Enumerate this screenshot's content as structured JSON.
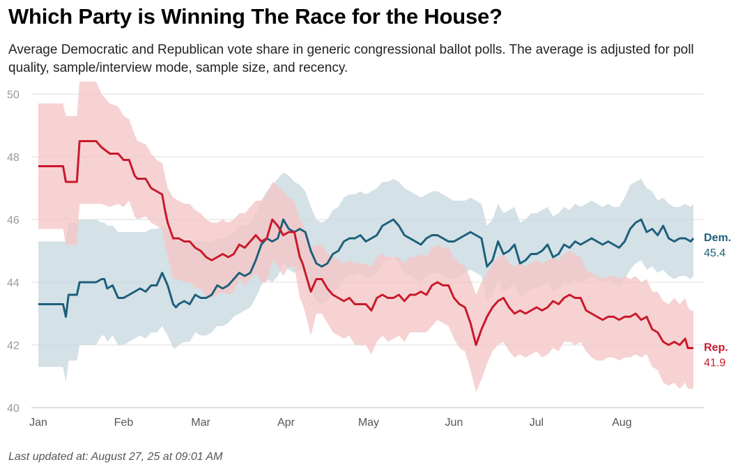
{
  "header": {
    "title": "Which Party is Winning The Race for the House?",
    "subtitle": "Average Democratic and Republican vote share in generic congressional ballot polls. The average is adjusted for poll quality, sample/interview mode, sample size, and recency."
  },
  "footer": {
    "updated": "Last updated at: August 27, 25 at 09:01 AM"
  },
  "colors": {
    "dem": "#1d5f7a",
    "dem_band": "#c9dae1",
    "rep": "#c8192a",
    "rep_band": "#f4c7c7",
    "grid": "#dddddd"
  },
  "chart_data": {
    "type": "line",
    "title": "Which Party is Winning The Race for the House?",
    "xlabel": "",
    "ylabel": "",
    "ylim": [
      40,
      50
    ],
    "y_ticks": [
      40,
      42,
      44,
      46,
      48,
      50
    ],
    "x_tick_labels": [
      "Jan",
      "Feb",
      "Mar",
      "Apr",
      "May",
      "Jun",
      "Jul",
      "Aug"
    ],
    "x_tick_days": [
      1,
      32,
      60,
      91,
      121,
      152,
      182,
      213
    ],
    "x_unit": "day of year 2025",
    "grid": true,
    "series": [
      {
        "name": "Dem.",
        "end_value": "45.4",
        "x": [
          1,
          10,
          11,
          12,
          15,
          16,
          22,
          24,
          25,
          26,
          28,
          30,
          32,
          34,
          36,
          38,
          40,
          42,
          44,
          46,
          48,
          50,
          51,
          52,
          54,
          56,
          58,
          60,
          62,
          64,
          66,
          68,
          70,
          72,
          74,
          76,
          78,
          80,
          82,
          84,
          86,
          88,
          90,
          92,
          94,
          96,
          98,
          100,
          102,
          104,
          106,
          108,
          110,
          112,
          114,
          116,
          118,
          120,
          122,
          124,
          126,
          128,
          130,
          132,
          134,
          136,
          138,
          140,
          142,
          144,
          146,
          148,
          150,
          152,
          154,
          156,
          158,
          160,
          162,
          164,
          166,
          168,
          170,
          172,
          174,
          176,
          178,
          180,
          182,
          184,
          186,
          188,
          190,
          192,
          194,
          196,
          198,
          200,
          202,
          204,
          206,
          208,
          210,
          212,
          214,
          216,
          218,
          220,
          222,
          224,
          226,
          228,
          230,
          232,
          234,
          236,
          238,
          239
        ],
        "y": [
          43.3,
          43.3,
          42.9,
          43.6,
          43.6,
          44.0,
          44.0,
          44.1,
          44.1,
          43.8,
          43.9,
          43.5,
          43.5,
          43.6,
          43.7,
          43.8,
          43.7,
          43.9,
          43.9,
          44.3,
          43.9,
          43.3,
          43.2,
          43.3,
          43.4,
          43.3,
          43.6,
          43.5,
          43.5,
          43.6,
          43.9,
          43.8,
          43.9,
          44.1,
          44.3,
          44.2,
          44.3,
          44.7,
          45.2,
          45.4,
          45.3,
          45.4,
          46.0,
          45.7,
          45.6,
          45.7,
          45.6,
          45.0,
          44.6,
          44.5,
          44.6,
          44.9,
          45.0,
          45.3,
          45.4,
          45.4,
          45.5,
          45.3,
          45.4,
          45.5,
          45.8,
          45.9,
          46.0,
          45.8,
          45.5,
          45.4,
          45.3,
          45.2,
          45.4,
          45.5,
          45.5,
          45.4,
          45.3,
          45.3,
          45.4,
          45.5,
          45.6,
          45.5,
          45.4,
          44.5,
          44.7,
          45.3,
          44.9,
          45.0,
          45.2,
          44.6,
          44.7,
          44.9,
          44.9,
          45.0,
          45.2,
          44.8,
          44.9,
          45.2,
          45.1,
          45.3,
          45.2,
          45.3,
          45.4,
          45.3,
          45.2,
          45.3,
          45.2,
          45.1,
          45.3,
          45.7,
          45.9,
          46.0,
          45.6,
          45.7,
          45.5,
          45.8,
          45.4,
          45.3,
          45.4,
          45.4,
          45.3,
          45.4
        ],
        "upper": [
          45.3,
          45.3,
          45.3,
          45.9,
          45.9,
          46.0,
          46.0,
          45.9,
          45.9,
          45.8,
          45.8,
          45.6,
          45.6,
          45.6,
          45.6,
          45.6,
          45.6,
          45.7,
          45.7,
          45.8,
          45.7,
          45.4,
          45.3,
          45.3,
          45.3,
          45.2,
          45.3,
          45.3,
          45.3,
          45.3,
          45.4,
          45.4,
          45.5,
          45.6,
          45.8,
          45.8,
          45.9,
          46.2,
          46.6,
          46.9,
          47.1,
          47.3,
          47.5,
          47.4,
          47.2,
          47.1,
          46.9,
          46.4,
          46.0,
          45.9,
          46.0,
          46.3,
          46.4,
          46.7,
          46.8,
          46.8,
          46.9,
          46.8,
          46.9,
          47.0,
          47.2,
          47.2,
          47.3,
          47.2,
          47.0,
          46.9,
          46.8,
          46.7,
          46.8,
          46.9,
          46.9,
          46.8,
          46.7,
          46.6,
          46.6,
          46.6,
          46.7,
          46.6,
          46.5,
          45.8,
          46.0,
          46.5,
          46.2,
          46.3,
          46.4,
          45.9,
          46.0,
          46.2,
          46.2,
          46.3,
          46.4,
          46.1,
          46.2,
          46.4,
          46.3,
          46.5,
          46.4,
          46.5,
          46.6,
          46.5,
          46.4,
          46.5,
          46.4,
          46.4,
          46.7,
          47.1,
          47.2,
          47.3,
          47.0,
          46.9,
          46.6,
          46.7,
          46.5,
          46.4,
          46.4,
          46.5,
          46.4,
          46.5
        ],
        "lower": [
          41.3,
          41.3,
          40.8,
          41.5,
          41.5,
          42.0,
          42.0,
          42.3,
          42.3,
          42.1,
          42.3,
          42.0,
          42.0,
          42.1,
          42.2,
          42.3,
          42.2,
          42.4,
          42.4,
          42.6,
          42.3,
          41.9,
          41.9,
          42.0,
          42.1,
          42.1,
          42.4,
          42.3,
          42.3,
          42.4,
          42.6,
          42.6,
          42.7,
          42.9,
          43.0,
          43.1,
          43.2,
          43.5,
          43.9,
          44.1,
          44.0,
          44.2,
          44.6,
          44.4,
          44.3,
          44.4,
          44.3,
          43.8,
          43.4,
          43.3,
          43.4,
          43.7,
          43.8,
          44.1,
          44.2,
          44.2,
          44.3,
          44.1,
          44.2,
          44.3,
          44.6,
          44.7,
          44.8,
          44.6,
          44.3,
          44.2,
          44.1,
          44.0,
          44.2,
          44.3,
          44.3,
          44.2,
          44.1,
          44.1,
          44.2,
          44.3,
          44.4,
          44.3,
          44.2,
          43.4,
          43.6,
          44.1,
          43.7,
          43.8,
          44.0,
          43.5,
          43.6,
          43.8,
          43.8,
          43.9,
          44.0,
          43.7,
          43.8,
          44.0,
          43.9,
          44.1,
          44.0,
          44.1,
          44.2,
          44.1,
          44.0,
          44.1,
          44.0,
          43.9,
          44.1,
          44.4,
          44.6,
          44.7,
          44.4,
          44.5,
          44.3,
          44.4,
          44.2,
          44.1,
          44.2,
          44.2,
          44.1,
          44.2
        ]
      },
      {
        "name": "Rep.",
        "end_value": "41.9",
        "x": [
          1,
          10,
          11,
          15,
          16,
          22,
          24,
          27,
          30,
          32,
          34,
          36,
          37,
          40,
          42,
          44,
          46,
          47,
          48,
          50,
          52,
          54,
          56,
          58,
          60,
          62,
          64,
          66,
          68,
          70,
          72,
          74,
          76,
          78,
          80,
          82,
          84,
          86,
          88,
          90,
          92,
          94,
          96,
          97,
          98,
          100,
          102,
          104,
          106,
          108,
          110,
          112,
          114,
          116,
          118,
          120,
          122,
          124,
          126,
          128,
          130,
          132,
          134,
          136,
          138,
          140,
          142,
          144,
          146,
          148,
          150,
          152,
          154,
          156,
          158,
          160,
          162,
          164,
          166,
          168,
          170,
          172,
          174,
          176,
          178,
          180,
          182,
          184,
          186,
          188,
          190,
          192,
          194,
          196,
          198,
          200,
          202,
          204,
          206,
          208,
          210,
          212,
          214,
          216,
          218,
          220,
          222,
          224,
          226,
          228,
          230,
          232,
          234,
          236,
          237,
          238,
          239
        ],
        "y": [
          47.7,
          47.7,
          47.2,
          47.2,
          48.5,
          48.5,
          48.3,
          48.1,
          48.1,
          47.9,
          47.9,
          47.4,
          47.3,
          47.3,
          47.0,
          46.9,
          46.8,
          46.3,
          45.9,
          45.4,
          45.4,
          45.3,
          45.3,
          45.1,
          45.0,
          44.8,
          44.7,
          44.8,
          44.9,
          44.8,
          44.9,
          45.2,
          45.1,
          45.3,
          45.5,
          45.3,
          45.4,
          46.0,
          45.8,
          45.5,
          45.6,
          45.6,
          44.8,
          44.6,
          44.3,
          43.7,
          44.1,
          44.1,
          43.8,
          43.6,
          43.5,
          43.4,
          43.5,
          43.3,
          43.3,
          43.3,
          43.1,
          43.5,
          43.6,
          43.5,
          43.5,
          43.6,
          43.4,
          43.6,
          43.6,
          43.7,
          43.6,
          43.9,
          44.0,
          43.9,
          43.9,
          43.5,
          43.3,
          43.2,
          42.7,
          42.0,
          42.5,
          42.9,
          43.2,
          43.4,
          43.5,
          43.2,
          43.0,
          43.1,
          43.0,
          43.1,
          43.2,
          43.1,
          43.2,
          43.4,
          43.3,
          43.5,
          43.6,
          43.5,
          43.5,
          43.1,
          43.0,
          42.9,
          42.8,
          42.9,
          42.9,
          42.8,
          42.9,
          42.9,
          43.0,
          42.8,
          42.9,
          42.5,
          42.4,
          42.1,
          42.0,
          42.1,
          42.0,
          42.2,
          41.9,
          41.9,
          41.9
        ],
        "upper": [
          49.7,
          49.7,
          49.3,
          49.3,
          50.4,
          50.4,
          50.0,
          49.7,
          49.6,
          49.3,
          49.2,
          48.7,
          48.5,
          48.4,
          48.1,
          47.9,
          47.8,
          47.4,
          47.0,
          46.7,
          46.6,
          46.5,
          46.5,
          46.3,
          46.2,
          46.0,
          45.9,
          45.9,
          46.0,
          45.9,
          46.0,
          46.2,
          46.2,
          46.4,
          46.6,
          46.6,
          46.8,
          47.2,
          47.1,
          46.9,
          46.7,
          46.6,
          46.0,
          45.9,
          45.6,
          45.1,
          45.2,
          45.2,
          44.9,
          44.8,
          44.7,
          44.6,
          44.7,
          44.6,
          44.6,
          44.6,
          44.5,
          44.8,
          44.9,
          44.8,
          44.8,
          44.8,
          44.6,
          44.8,
          44.8,
          44.9,
          44.8,
          45.1,
          45.2,
          45.1,
          45.1,
          44.8,
          44.6,
          44.5,
          44.1,
          43.6,
          44.0,
          44.3,
          44.6,
          44.8,
          44.9,
          44.6,
          44.5,
          44.6,
          44.5,
          44.6,
          44.7,
          44.6,
          44.7,
          44.8,
          44.7,
          44.9,
          45.0,
          44.9,
          44.8,
          44.4,
          44.3,
          44.2,
          44.1,
          44.2,
          44.2,
          44.1,
          44.2,
          44.1,
          44.2,
          44.0,
          44.1,
          43.7,
          43.7,
          43.4,
          43.3,
          43.5,
          43.3,
          43.5,
          43.2,
          43.1,
          43.1
        ],
        "lower": [
          45.7,
          45.7,
          45.2,
          45.2,
          46.5,
          46.5,
          46.5,
          46.4,
          46.5,
          46.4,
          46.6,
          46.1,
          46.0,
          46.1,
          45.9,
          45.8,
          45.7,
          45.2,
          44.8,
          44.1,
          44.1,
          44.0,
          44.0,
          43.8,
          43.8,
          43.5,
          43.5,
          43.6,
          43.7,
          43.6,
          43.7,
          44.1,
          43.9,
          44.1,
          44.3,
          44.0,
          44.0,
          44.7,
          44.5,
          44.2,
          44.5,
          44.5,
          43.5,
          43.3,
          43.0,
          42.3,
          43.0,
          43.0,
          42.7,
          42.4,
          42.3,
          42.2,
          42.3,
          42.0,
          42.0,
          42.0,
          41.7,
          42.1,
          42.3,
          42.1,
          42.2,
          42.3,
          42.1,
          42.4,
          42.4,
          42.4,
          42.4,
          42.6,
          42.8,
          42.7,
          42.6,
          42.2,
          41.9,
          41.8,
          41.2,
          40.5,
          40.9,
          41.4,
          41.8,
          42.0,
          42.1,
          41.8,
          41.6,
          41.7,
          41.6,
          41.7,
          41.8,
          41.6,
          41.7,
          41.9,
          41.8,
          42.1,
          42.1,
          42.0,
          42.1,
          41.8,
          41.6,
          41.5,
          41.5,
          41.6,
          41.6,
          41.5,
          41.6,
          41.6,
          41.7,
          41.6,
          41.7,
          41.3,
          41.2,
          40.8,
          40.7,
          40.8,
          40.6,
          40.8,
          40.6,
          40.6,
          40.6
        ]
      }
    ]
  }
}
